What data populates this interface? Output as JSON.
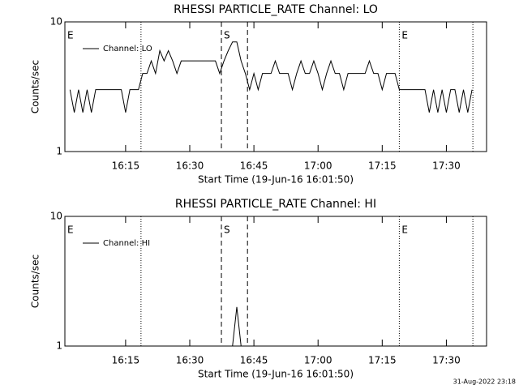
{
  "chart_data": [
    {
      "type": "line",
      "title": "RHESSI PARTICLE_RATE Channel: LO",
      "xlabel": "Start Time (19-Jun-16 16:01:50)",
      "ylabel": "Counts/sec",
      "log_y": true,
      "legend": "upper left",
      "xlim": [
        0.8,
        99.4
      ],
      "ylim": [
        1,
        10
      ],
      "xticks": [
        {
          "value": 15,
          "label": "16:15"
        },
        {
          "value": 30,
          "label": "16:30"
        },
        {
          "value": 45,
          "label": "16:45"
        },
        {
          "value": 60,
          "label": "17:00"
        },
        {
          "value": 75,
          "label": "17:15"
        },
        {
          "value": 90,
          "label": "17:30"
        }
      ],
      "yticks": [
        1,
        10
      ],
      "markers": [
        {
          "x": 18.6,
          "style": "dotted"
        },
        {
          "x": 37.4,
          "style": "dashed"
        },
        {
          "x": 43.5,
          "style": "dashed"
        },
        {
          "x": 79,
          "style": "dotted"
        },
        {
          "x": 96.2,
          "style": "dotted"
        }
      ],
      "annotations": [
        {
          "x": 0.8,
          "text": "E"
        },
        {
          "x": 37.4,
          "text": "S"
        },
        {
          "x": 79,
          "text": "E"
        }
      ],
      "x": [
        2,
        3,
        4,
        5,
        6,
        7,
        8,
        9,
        10,
        11,
        12,
        13,
        14,
        15,
        16,
        17,
        18,
        19,
        20,
        21,
        22,
        23,
        24,
        25,
        26,
        27,
        28,
        29,
        30,
        31,
        32,
        33,
        34,
        35,
        36,
        37,
        38,
        39,
        40,
        41,
        42,
        43,
        44,
        45,
        46,
        47,
        48,
        49,
        50,
        51,
        52,
        53,
        54,
        55,
        56,
        57,
        58,
        59,
        60,
        61,
        62,
        63,
        64,
        65,
        66,
        67,
        68,
        69,
        70,
        71,
        72,
        73,
        74,
        75,
        76,
        77,
        78,
        79,
        80,
        81,
        82,
        83,
        84,
        85,
        86,
        87,
        88,
        89,
        90,
        91,
        92,
        93,
        94,
        95,
        96
      ],
      "series": [
        {
          "name": "Channel: LO",
          "color": "#000000",
          "values": [
            3,
            2,
            3,
            2,
            3,
            2,
            3,
            3,
            3,
            3,
            3,
            3,
            3,
            2,
            3,
            3,
            3,
            4,
            4,
            5,
            4,
            6,
            5,
            6,
            5,
            4,
            5,
            5,
            5,
            5,
            5,
            5,
            5,
            5,
            5,
            4,
            5,
            6,
            7,
            7,
            5,
            4,
            3,
            4,
            3,
            4,
            4,
            4,
            5,
            4,
            4,
            4,
            3,
            4,
            5,
            4,
            4,
            5,
            4,
            3,
            4,
            5,
            4,
            4,
            3,
            4,
            4,
            4,
            4,
            4,
            5,
            4,
            4,
            3,
            4,
            4,
            4,
            3,
            3,
            3,
            3,
            3,
            3,
            3,
            2,
            3,
            2,
            3,
            2,
            3,
            3,
            2,
            3,
            2,
            3
          ]
        }
      ]
    },
    {
      "type": "line",
      "title": "RHESSI PARTICLE_RATE Channel: HI",
      "xlabel": "Start Time (19-Jun-16 16:01:50)",
      "ylabel": "Counts/sec",
      "log_y": true,
      "legend": "upper left",
      "xlim": [
        0.8,
        99.4
      ],
      "ylim": [
        1,
        10
      ],
      "xticks": [
        {
          "value": 15,
          "label": "16:15"
        },
        {
          "value": 30,
          "label": "16:30"
        },
        {
          "value": 45,
          "label": "16:45"
        },
        {
          "value": 60,
          "label": "17:00"
        },
        {
          "value": 75,
          "label": "17:15"
        },
        {
          "value": 90,
          "label": "17:30"
        }
      ],
      "yticks": [
        1,
        10
      ],
      "markers": [
        {
          "x": 18.6,
          "style": "dotted"
        },
        {
          "x": 37.4,
          "style": "dashed"
        },
        {
          "x": 43.5,
          "style": "dashed"
        },
        {
          "x": 79,
          "style": "dotted"
        },
        {
          "x": 96.2,
          "style": "dotted"
        }
      ],
      "annotations": [
        {
          "x": 0.8,
          "text": "E"
        },
        {
          "x": 37.4,
          "text": "S"
        },
        {
          "x": 79,
          "text": "E"
        }
      ],
      "x": [
        2,
        3,
        4,
        5,
        6,
        7,
        8,
        9,
        10,
        11,
        12,
        13,
        14,
        15,
        16,
        17,
        18,
        19,
        20,
        21,
        22,
        23,
        24,
        25,
        26,
        27,
        28,
        29,
        30,
        31,
        32,
        33,
        34,
        35,
        36,
        37,
        38,
        39,
        40,
        41,
        42,
        43,
        44,
        45,
        46,
        47,
        48,
        49,
        50,
        51,
        52,
        53,
        54,
        55,
        56,
        57,
        58,
        59,
        60,
        61,
        62,
        63,
        64,
        65,
        66,
        67,
        68,
        69,
        70,
        71,
        72,
        73,
        74,
        75,
        76,
        77,
        78,
        79,
        80,
        81,
        82,
        83,
        84,
        85,
        86,
        87,
        88,
        89,
        90,
        91,
        92,
        93,
        94,
        95,
        96
      ],
      "series": [
        {
          "name": "Channel: HI",
          "color": "#000000",
          "values": [
            1,
            1,
            1,
            1,
            1,
            1,
            1,
            1,
            1,
            1,
            1,
            1,
            1,
            1,
            1,
            1,
            1,
            1,
            1,
            1,
            1,
            1,
            1,
            1,
            1,
            1,
            1,
            1,
            1,
            1,
            1,
            1,
            1,
            1,
            1,
            1,
            1,
            1,
            1,
            2,
            1,
            1,
            1,
            1,
            1,
            1,
            1,
            1,
            1,
            1,
            1,
            1,
            1,
            1,
            1,
            1,
            1,
            1,
            1,
            1,
            1,
            1,
            1,
            1,
            1,
            1,
            1,
            1,
            1,
            1,
            1,
            1,
            1,
            1,
            1,
            1,
            1,
            1,
            1,
            1,
            1,
            1,
            1,
            1,
            1,
            1,
            1,
            1,
            1,
            1,
            1,
            1,
            1,
            1,
            1
          ]
        }
      ]
    }
  ],
  "footer": "31-Aug-2022 23:18"
}
